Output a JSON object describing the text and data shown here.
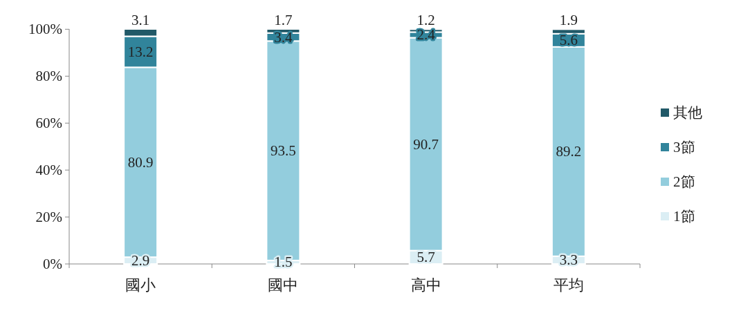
{
  "chart_data": {
    "type": "bar",
    "stacked": true,
    "categories": [
      "國小",
      "國中",
      "高中",
      "平均"
    ],
    "series": [
      {
        "name": "1節",
        "color": "#dbeef4",
        "values": [
          2.9,
          1.5,
          5.7,
          3.3
        ]
      },
      {
        "name": "2節",
        "color": "#93cddd",
        "values": [
          80.9,
          93.5,
          90.7,
          89.2
        ]
      },
      {
        "name": "3節",
        "color": "#31849b",
        "values": [
          13.2,
          3.4,
          2.4,
          5.6
        ]
      },
      {
        "name": "其他",
        "color": "#215968",
        "values": [
          3.1,
          1.7,
          1.2,
          1.9
        ]
      }
    ],
    "ylim": [
      0,
      100.1
    ],
    "yticks": [
      {
        "value": 0,
        "label": "0%"
      },
      {
        "value": 20,
        "label": "20%"
      },
      {
        "value": 40,
        "label": "40%"
      },
      {
        "value": 60,
        "label": "60%"
      },
      {
        "value": 80,
        "label": "80%"
      },
      {
        "value": 100,
        "label": "100%"
      }
    ],
    "data_labels": true,
    "legend": "right"
  }
}
